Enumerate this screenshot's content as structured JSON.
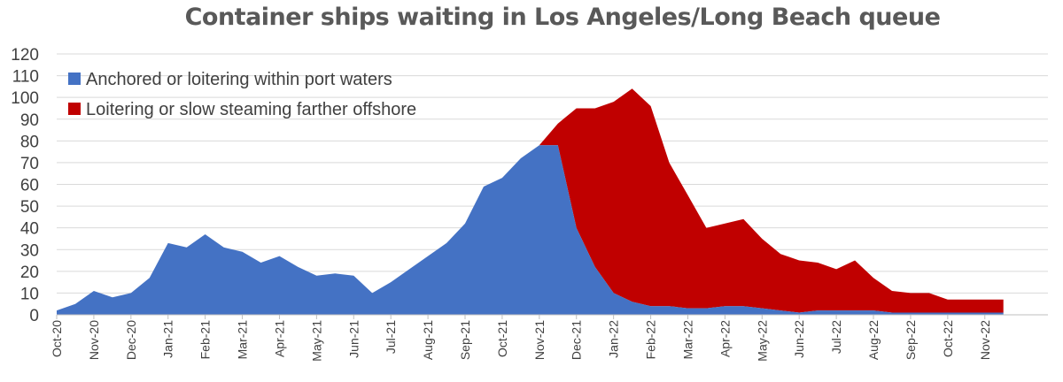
{
  "chart_data": {
    "type": "area",
    "title": "Container ships waiting in Los Angeles/Long Beach queue",
    "xlabel": "",
    "ylabel": "",
    "ylim": [
      0,
      120
    ],
    "y_ticks": [
      "0",
      "10",
      "20",
      "30",
      "40",
      "50",
      "60",
      "70",
      "80",
      "90",
      "100",
      "110",
      "120"
    ],
    "x_ticks": [
      "Oct-20",
      "Nov-20",
      "Dec-20",
      "Jan-21",
      "Feb-21",
      "Mar-21",
      "Apr-21",
      "May-21",
      "Jun-21",
      "Jul-21",
      "Aug-21",
      "Sep-21",
      "Oct-21",
      "Nov-21",
      "Dec-21",
      "Jan-22",
      "Feb-22",
      "Mar-22",
      "Apr-22",
      "May-22",
      "Jun-22",
      "Jul-22",
      "Aug-22",
      "Sep-22",
      "Oct-22",
      "Nov-22"
    ],
    "grid": true,
    "legend_position": "top-left",
    "stacked": true,
    "series": [
      {
        "name": "Anchored or loitering within port waters",
        "color": "#4472c4",
        "points": [
          [
            "Oct-20",
            2
          ],
          [
            "Oct-20 mid",
            5
          ],
          [
            "Nov-20",
            11
          ],
          [
            "Nov-20 mid",
            8
          ],
          [
            "Dec-20",
            10
          ],
          [
            "Dec-20 mid",
            17
          ],
          [
            "Jan-21",
            33
          ],
          [
            "Jan-21 mid",
            31
          ],
          [
            "Feb-21",
            37
          ],
          [
            "Feb-21 mid",
            31
          ],
          [
            "Mar-21",
            29
          ],
          [
            "Mar-21 mid",
            24
          ],
          [
            "Apr-21",
            27
          ],
          [
            "Apr-21 mid",
            22
          ],
          [
            "May-21",
            18
          ],
          [
            "May-21 mid",
            19
          ],
          [
            "Jun-21",
            18
          ],
          [
            "Jun-21 mid",
            10
          ],
          [
            "Jul-21",
            15
          ],
          [
            "Jul-21 mid",
            21
          ],
          [
            "Aug-21",
            27
          ],
          [
            "Aug-21 mid",
            33
          ],
          [
            "Sep-21",
            42
          ],
          [
            "Sep-21 mid",
            59
          ],
          [
            "Oct-21",
            63
          ],
          [
            "Oct-21 mid",
            72
          ],
          [
            "Nov-21",
            78
          ],
          [
            "Nov-21 mid",
            78
          ],
          [
            "Dec-21",
            40
          ],
          [
            "Dec-21 mid",
            22
          ],
          [
            "Jan-22",
            10
          ],
          [
            "Jan-22 mid",
            6
          ],
          [
            "Feb-22",
            4
          ],
          [
            "Feb-22 mid",
            4
          ],
          [
            "Mar-22",
            3
          ],
          [
            "Mar-22 mid",
            3
          ],
          [
            "Apr-22",
            4
          ],
          [
            "Apr-22 mid",
            4
          ],
          [
            "May-22",
            3
          ],
          [
            "May-22 mid",
            2
          ],
          [
            "Jun-22",
            1
          ],
          [
            "Jun-22 mid",
            2
          ],
          [
            "Jul-22",
            2
          ],
          [
            "Jul-22 mid",
            2
          ],
          [
            "Aug-22",
            2
          ],
          [
            "Aug-22 mid",
            1
          ],
          [
            "Sep-22",
            1
          ],
          [
            "Sep-22 mid",
            1
          ],
          [
            "Oct-22",
            1
          ],
          [
            "Oct-22 mid",
            1
          ],
          [
            "Nov-22",
            1
          ],
          [
            "Nov-22 mid",
            1
          ]
        ]
      },
      {
        "name": "Loitering or slow steaming farther offshore",
        "color": "#c00000",
        "points": [
          [
            "Nov-21",
            0
          ],
          [
            "Nov-21 mid",
            10
          ],
          [
            "Dec-21",
            55
          ],
          [
            "Dec-21 mid",
            73
          ],
          [
            "Jan-22",
            88
          ],
          [
            "Jan-22 mid",
            98
          ],
          [
            "Feb-22",
            92
          ],
          [
            "Feb-22 mid",
            66
          ],
          [
            "Mar-22",
            52
          ],
          [
            "Mar-22 mid",
            37
          ],
          [
            "Apr-22",
            38
          ],
          [
            "Apr-22 mid",
            40
          ],
          [
            "May-22",
            32
          ],
          [
            "May-22 mid",
            26
          ],
          [
            "Jun-22",
            24
          ],
          [
            "Jun-22 mid",
            22
          ],
          [
            "Jul-22",
            19
          ],
          [
            "Jul-22 mid",
            23
          ],
          [
            "Aug-22",
            15
          ],
          [
            "Aug-22 mid",
            10
          ],
          [
            "Sep-22",
            9
          ],
          [
            "Sep-22 mid",
            9
          ],
          [
            "Oct-22",
            6
          ],
          [
            "Oct-22 mid",
            6
          ],
          [
            "Nov-22",
            6
          ],
          [
            "Nov-22 mid",
            6
          ]
        ]
      }
    ]
  }
}
